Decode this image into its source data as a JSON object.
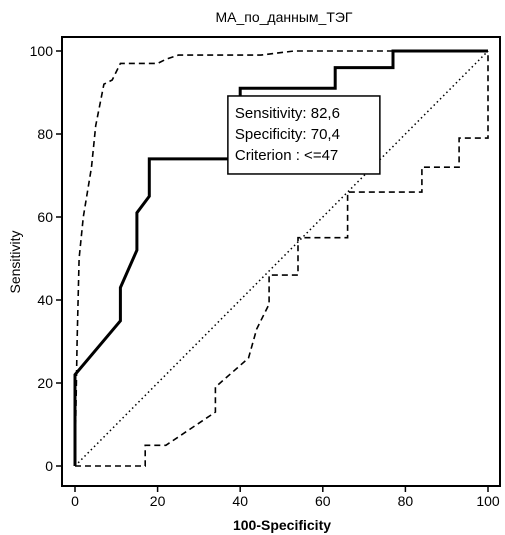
{
  "chart_data": {
    "type": "line",
    "title": "МА_по_данным_ТЭГ",
    "xlabel": "100-Specificity",
    "ylabel": "Sensitivity",
    "xlim": [
      0,
      100
    ],
    "ylim": [
      0,
      100
    ],
    "xticks": [
      "0",
      "20",
      "40",
      "60",
      "80",
      "100"
    ],
    "yticks": [
      "0",
      "20",
      "40",
      "60",
      "80",
      "100"
    ],
    "grid": false,
    "series": [
      {
        "style": "solid-bold",
        "x": [
          0,
          0,
          11,
          11,
          15,
          15,
          18,
          18,
          22,
          22,
          40,
          40,
          63,
          63,
          77,
          77,
          100
        ],
        "y": [
          0,
          22,
          35,
          43,
          52,
          61,
          65,
          74,
          74,
          74,
          74,
          91,
          91,
          96,
          96,
          100,
          100
        ]
      },
      {
        "style": "dashed",
        "x": [
          0,
          0.5,
          1,
          2,
          4,
          5,
          7,
          9,
          11,
          13,
          17,
          20,
          22,
          25,
          35,
          45,
          53,
          60,
          70,
          80,
          90,
          100
        ],
        "y": [
          0,
          30,
          50,
          60,
          72,
          82,
          92,
          93,
          97,
          97,
          97,
          97,
          98,
          99,
          99,
          99,
          100,
          100,
          100,
          100,
          100,
          100
        ]
      },
      {
        "style": "dashed",
        "x": [
          0,
          17,
          17,
          22,
          34,
          34,
          42,
          44,
          47,
          47,
          54,
          54,
          66,
          66,
          84,
          84,
          93,
          93,
          100,
          100
        ],
        "y": [
          0,
          0,
          5,
          5,
          13,
          19,
          26,
          33,
          39,
          46,
          46,
          55,
          55,
          66,
          66,
          72,
          72,
          79,
          79,
          100
        ]
      },
      {
        "style": "dotted",
        "x": [
          0,
          100
        ],
        "y": [
          0,
          100
        ]
      }
    ],
    "callout": {
      "lines": [
        "Sensitivity: 82,6",
        "Specificity: 70,4",
        "Criterion : <=47"
      ],
      "anchor_x": 37.5,
      "anchor_y": 73.5
    }
  }
}
